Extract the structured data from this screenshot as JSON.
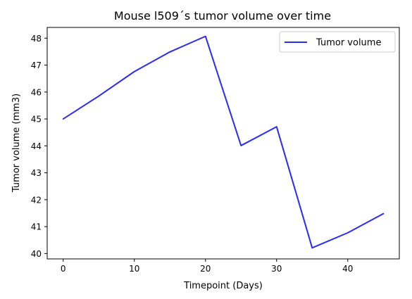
{
  "chart_data": {
    "type": "line",
    "title": "Mouse l509´s tumor volume over time",
    "xlabel": "Timepoint (Days)",
    "ylabel": "Tumor volume (mm3)",
    "xlim": [
      -2.25,
      47.25
    ],
    "ylim": [
      39.8,
      48.4
    ],
    "x_ticks": [
      0,
      10,
      20,
      30,
      40
    ],
    "y_ticks": [
      40,
      41,
      42,
      43,
      44,
      45,
      46,
      47,
      48
    ],
    "grid": false,
    "legend_position": "top-right",
    "series": [
      {
        "name": "Tumor volume",
        "color": "#2b2bf5",
        "x": [
          0,
          5,
          10,
          15,
          20,
          25,
          30,
          35,
          40,
          45
        ],
        "y": [
          45.0,
          45.85,
          46.76,
          47.49,
          48.07,
          44.01,
          44.71,
          40.21,
          40.77,
          41.48
        ]
      }
    ]
  }
}
